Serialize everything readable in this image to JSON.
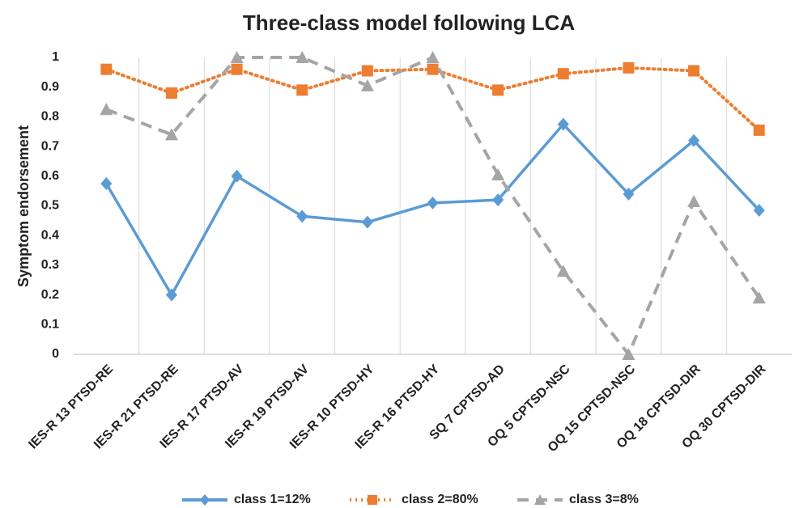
{
  "chart_data": {
    "type": "line",
    "title": "Three-class model following LCA",
    "ylabel": "Symptom endorsement",
    "categories": [
      "IES-R 13 PTSD-RE",
      "IES-R 21 PTSD-RE",
      "IES-R 17 PTSD-AV",
      "IES-R 19 PTSD-AV",
      "IES-R 10 PTSD-HY",
      "IES-R 16 PTSD-HY",
      "SQ 7 CPTSD-AD",
      "OQ 5 CPTSD-NSC",
      "OQ 15 CPTSD-NSC",
      "OQ 18 CPTSD-DIR",
      "OQ 30 CPTSD-DIR"
    ],
    "series": [
      {
        "name": "class 1=12%",
        "color": "#5b9bd5",
        "dash": "solid",
        "marker": "diamond",
        "values": [
          0.575,
          0.2,
          0.6,
          0.465,
          0.445,
          0.51,
          0.52,
          0.775,
          0.54,
          0.72,
          0.485
        ]
      },
      {
        "name": "class 2=80%",
        "color": "#ed7d31",
        "dash": "dotted",
        "marker": "square",
        "values": [
          0.96,
          0.88,
          0.96,
          0.89,
          0.955,
          0.96,
          0.89,
          0.945,
          0.965,
          0.955,
          0.755
        ]
      },
      {
        "name": "class 3=8%",
        "color": "#a5a5a5",
        "dash": "dashed",
        "marker": "triangle",
        "values": [
          0.825,
          0.74,
          1.0,
          1.0,
          0.905,
          1.0,
          0.605,
          0.28,
          0.0,
          0.515,
          0.19
        ]
      }
    ],
    "ylim": [
      0,
      1
    ],
    "yticks": [
      0,
      0.1,
      0.2,
      0.3,
      0.4,
      0.5,
      0.6,
      0.7,
      0.8,
      0.9,
      1
    ],
    "grid": "x",
    "legend": "bottom"
  }
}
